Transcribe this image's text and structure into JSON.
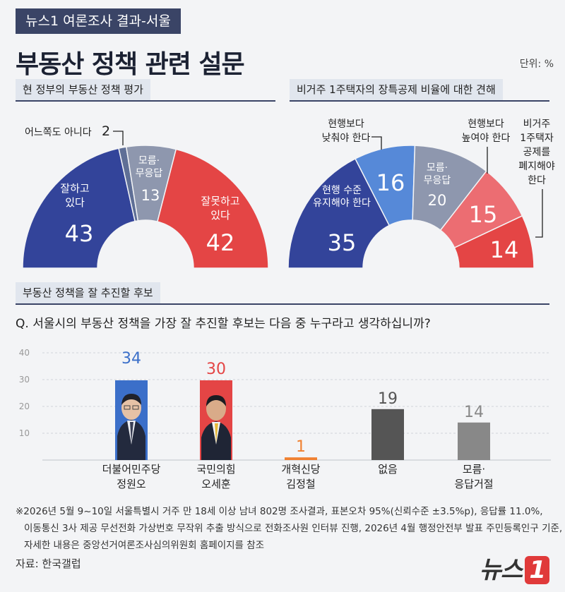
{
  "header": {
    "tag": "뉴스1 여론조사 결과-서울",
    "title": "부동산 정책 관련 설문",
    "unit": "단위: %"
  },
  "section1": {
    "title": "현 정부의 부동산 정책 평가"
  },
  "section2": {
    "title": "비거주 1주택자의 장특공제 비율에 대한 견해"
  },
  "section3": {
    "title": "부동산 정책을 잘 추진할 후보",
    "question": "Q. 서울시의 부동산 정책을 가장 잘 추진할 후보는 다음 중 누구라고 생각하십니까?"
  },
  "chart_data": [
    {
      "type": "pie",
      "title": "현 정부의 부동산 정책 평가",
      "categories": [
        "잘하고 있다",
        "어느쪽도 아니다",
        "모름·무응답",
        "잘못하고 있다"
      ],
      "values": [
        43,
        2,
        13,
        42
      ],
      "colors": [
        "#33449a",
        "#5f6f96",
        "#8e97ae",
        "#e44545"
      ]
    },
    {
      "type": "pie",
      "title": "비거주 1주택자의 장특공제 비율에 대한 견해",
      "categories": [
        "현행 수준 유지해야 한다",
        "현행보다 낮춰야 한다",
        "모름·무응답",
        "현행보다 높여야 한다",
        "비거주 1주택자 공제를 폐지해야 한다"
      ],
      "values": [
        35,
        16,
        20,
        15,
        14
      ],
      "colors": [
        "#33449a",
        "#5689d8",
        "#8e97ae",
        "#ec6d72",
        "#e44545"
      ]
    },
    {
      "type": "bar",
      "title": "부동산 정책을 잘 추진할 후보",
      "categories": [
        "더불어민주당 정원오",
        "국민의힘 오세훈",
        "개혁신당 김정철",
        "없음",
        "모름·응답거절"
      ],
      "values": [
        34,
        30,
        1,
        19,
        14
      ],
      "colors": [
        "#3b6fc9",
        "#e44545",
        "#f08030",
        "#555555",
        "#888888"
      ],
      "ylim": [
        0,
        40
      ],
      "yticks": [
        10,
        20,
        30,
        40
      ]
    }
  ],
  "labels": {
    "s1": {
      "good_l1": "잘하고",
      "good_l2": "있다",
      "good_v": "43",
      "neither": "어느쪽도 아니다",
      "neither_v": "2",
      "dk_l1": "모름·",
      "dk_l2": "무응답",
      "dk_v": "13",
      "bad_l1": "잘못하고",
      "bad_l2": "있다",
      "bad_v": "42"
    },
    "s2": {
      "keep_l1": "현행 수준",
      "keep_l2": "유지해야 한다",
      "keep_v": "35",
      "lower_l1": "현행보다",
      "lower_l2": "낮춰야 한다",
      "lower_v": "16",
      "dk_l1": "모름·",
      "dk_l2": "무응답",
      "dk_v": "20",
      "higher_l1": "현행보다",
      "higher_l2": "높여야 한다",
      "higher_v": "15",
      "abolish_l1": "비거주",
      "abolish_l2": "1주택자",
      "abolish_l3": "공제를",
      "abolish_l4": "폐지해야",
      "abolish_l5": "한다",
      "abolish_v": "14"
    },
    "candidates": [
      {
        "party": "더불어민주당",
        "name": "정원오"
      },
      {
        "party": "국민의힘",
        "name": "오세훈"
      },
      {
        "party": "개혁신당",
        "name": "김정철"
      },
      {
        "party": "없음",
        "name": ""
      },
      {
        "party": "모름·",
        "name": "응답거절"
      }
    ]
  },
  "footer": {
    "note1": "※2026년 5월 9~10일 서울특별시 거주 만 18세 이상 남녀 802명 조사결과, 표본오차 95%(신뢰수준 ±3.5%p), 응답률 11.0%,",
    "note2": "이동통신 3사 제공 무선전화 가상번호 무작위 추출 방식으로 전화조사원 인터뷰 진행, 2026년 4월 행정안전부 발표 주민등록인구 기준,",
    "note3": "자세한 내용은 중앙선거여론조사심의위원회 홈페이지를 참조",
    "source": "자료: 한국갤럽",
    "logo_text": "뉴스",
    "logo_num": "1"
  }
}
